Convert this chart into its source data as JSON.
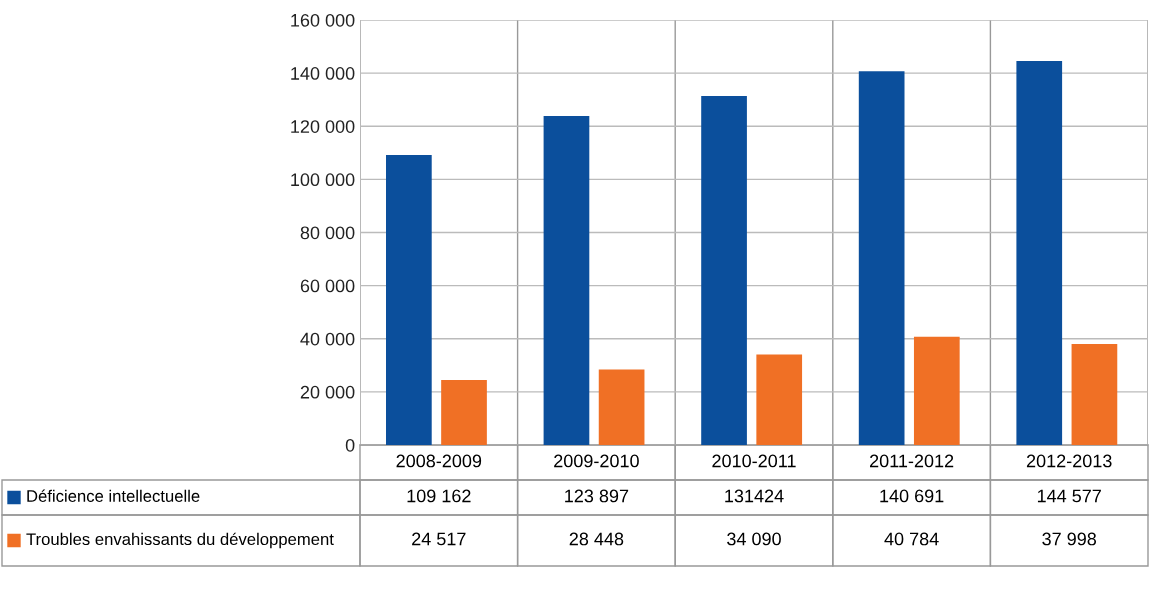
{
  "chart_data": {
    "type": "bar",
    "categories": [
      "2008-2009",
      "2009-2010",
      "2010-2011",
      "2011-2012",
      "2012-2013"
    ],
    "series": [
      {
        "name": "Déficience intellectuelle",
        "color": "#0b4f9c",
        "values": [
          109162,
          123897,
          131424,
          140691,
          144577
        ],
        "value_labels": [
          "109 162",
          "123 897",
          "131424",
          "140 691",
          "144 577"
        ]
      },
      {
        "name": "Troubles envahissants du développement",
        "color": "#f07025",
        "values": [
          24517,
          28448,
          34090,
          40784,
          37998
        ],
        "value_labels": [
          "24 517",
          "28 448",
          "34 090",
          "40 784",
          "37 998"
        ]
      }
    ],
    "ylim": [
      0,
      160000
    ],
    "yticks": [
      0,
      {
        "value": 20000,
        "label": "20 000"
      },
      {
        "value": 40000,
        "label": "40 000"
      },
      {
        "value": 60000,
        "label": "60 000"
      },
      {
        "value": 80000,
        "label": "80 000"
      },
      {
        "value": 100000,
        "label": "100 000"
      },
      {
        "value": 120000,
        "label": "120 000"
      },
      {
        "value": 140000,
        "label": "140 000"
      },
      {
        "value": 160000,
        "label": "160 000"
      }
    ],
    "grid": "y",
    "legend": "bottom left"
  }
}
